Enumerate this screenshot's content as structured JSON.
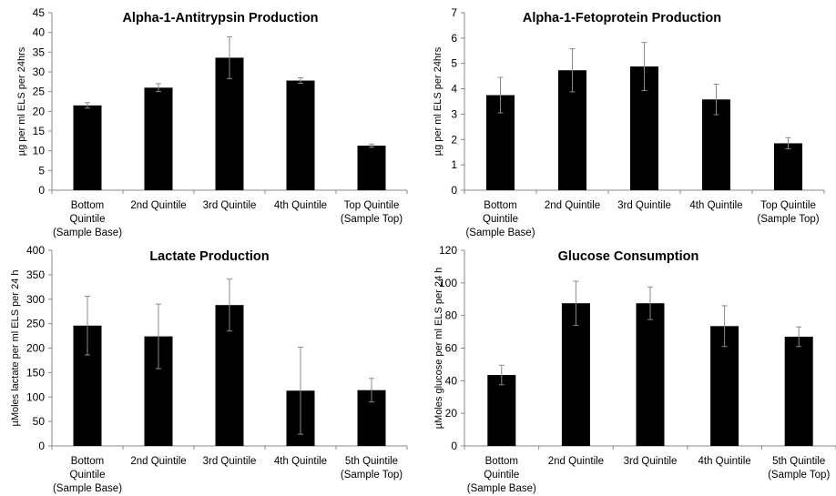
{
  "chart_data": [
    {
      "type": "bar",
      "title": "Alpha-1-Antitrypsin Production",
      "ylabel": "µg per ml ELS per 24hrs",
      "xlabel": "",
      "categories": [
        [
          "Bottom",
          "Quintile",
          "(Sample Base)"
        ],
        [
          "2nd Quintile"
        ],
        [
          "3rd Quintile"
        ],
        [
          "4th Quintile"
        ],
        [
          "Top Quintile",
          "(Sample Top)"
        ]
      ],
      "values": [
        21.5,
        26,
        33.6,
        27.8,
        11.3
      ],
      "errors": [
        0.7,
        1.0,
        5.3,
        0.7,
        0.4
      ],
      "ylim": [
        0,
        45
      ],
      "yticks": [
        0,
        5,
        10,
        15,
        20,
        25,
        30,
        35,
        40,
        45
      ],
      "grid": false,
      "bar_color": "#000000"
    },
    {
      "type": "bar",
      "title": "Alpha-1-Fetoprotein Production",
      "ylabel": "µg per ml ELS per 24hrs",
      "xlabel": "",
      "categories": [
        [
          "Bottom",
          "Quintile",
          "(Sample Base)"
        ],
        [
          "2nd Quintile"
        ],
        [
          "3rd Quintile"
        ],
        [
          "4th Quintile"
        ],
        [
          "Top Quintile",
          "(Sample Top)"
        ]
      ],
      "values": [
        3.75,
        4.73,
        4.88,
        3.58,
        1.85
      ],
      "errors": [
        0.7,
        0.85,
        0.95,
        0.6,
        0.22
      ],
      "ylim": [
        0,
        7
      ],
      "yticks": [
        0,
        1,
        2,
        3,
        4,
        5,
        6,
        7
      ],
      "grid": false,
      "bar_color": "#000000"
    },
    {
      "type": "bar",
      "title": "Lactate Production",
      "ylabel": "µMoles lactate per ml ELS per 24 h",
      "xlabel": "",
      "categories": [
        [
          "Bottom",
          "Quintile",
          "(Sample Base)"
        ],
        [
          "2nd Quintile"
        ],
        [
          "3rd Quintile"
        ],
        [
          "4th Quintile"
        ],
        [
          "5th Quintile",
          "(Sample Top)"
        ]
      ],
      "values": [
        246,
        224,
        288,
        113,
        114
      ],
      "errors": [
        60,
        66,
        53,
        89,
        24
      ],
      "ylim": [
        0,
        400
      ],
      "yticks": [
        0,
        50,
        100,
        150,
        200,
        250,
        300,
        350,
        400
      ],
      "grid": false,
      "bar_color": "#000000"
    },
    {
      "type": "bar",
      "title": "Glucose Consumption",
      "ylabel": "µMoles glucose per ml ELS per 24 h",
      "xlabel": "",
      "categories": [
        [
          "Bottom",
          "Quintile",
          "(Sample Base)"
        ],
        [
          "2nd Quintile"
        ],
        [
          "3rd Quintile"
        ],
        [
          "4th Quintile"
        ],
        [
          "5th Quintile",
          "(Sample Top)"
        ]
      ],
      "values": [
        43.5,
        87.5,
        87.5,
        73.5,
        67
      ],
      "errors": [
        6,
        13.5,
        10,
        12.5,
        6
      ],
      "ylim": [
        0,
        120
      ],
      "yticks": [
        0,
        20,
        40,
        60,
        80,
        100,
        120
      ],
      "grid": false,
      "bar_color": "#000000"
    }
  ]
}
